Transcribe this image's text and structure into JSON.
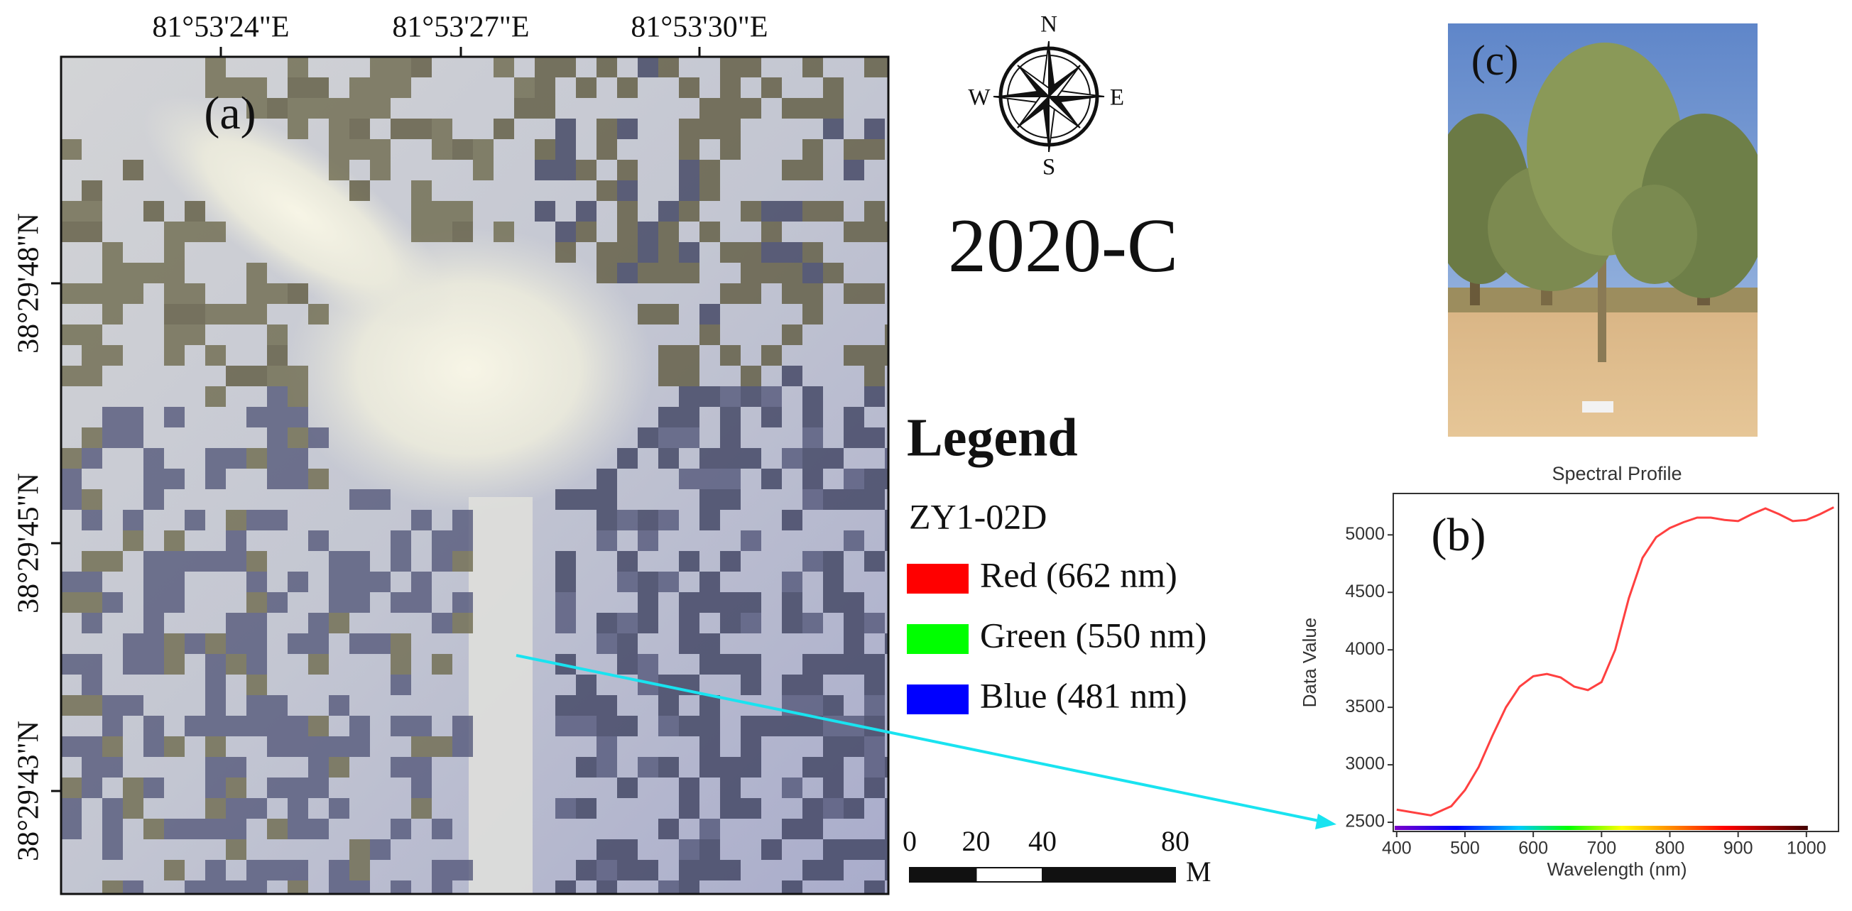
{
  "map": {
    "panel_label": "(a)",
    "x_labels": [
      "81°53'24\"E",
      "81°53'27\"E",
      "81°53'30\"E"
    ],
    "y_labels": [
      "38°29'48\"N",
      "38°29'45\"N",
      "38°29'43\"N"
    ],
    "north": "N",
    "south": "S",
    "east": "E",
    "west": "W",
    "title": "2020-C"
  },
  "legend": {
    "title": "Legend",
    "sensor": "ZY1-02D",
    "items": [
      {
        "label": "Red (662 nm)",
        "color": "#ff0000"
      },
      {
        "label": "Green (550 nm)",
        "color": "#00ff00"
      },
      {
        "label": "Blue (481 nm)",
        "color": "#0000ff"
      }
    ]
  },
  "scale_bar": {
    "ticks": [
      0,
      20,
      40,
      80
    ],
    "unit": "M"
  },
  "photo": {
    "panel_label": "(c)"
  },
  "chart_data": {
    "type": "line",
    "title": "Spectral Profile",
    "panel_label": "(b)",
    "x_label": "Wavelength (nm)",
    "y_label": "Data Value",
    "x": [
      400,
      420,
      450,
      480,
      500,
      520,
      540,
      560,
      580,
      600,
      620,
      640,
      660,
      680,
      700,
      720,
      740,
      760,
      780,
      800,
      820,
      840,
      860,
      880,
      900,
      920,
      940,
      960,
      980,
      1000,
      1020,
      1040
    ],
    "values": [
      2610,
      2590,
      2560,
      2640,
      2780,
      2980,
      3250,
      3500,
      3680,
      3770,
      3790,
      3760,
      3680,
      3650,
      3720,
      4000,
      4450,
      4800,
      4980,
      5060,
      5110,
      5150,
      5150,
      5130,
      5120,
      5180,
      5230,
      5180,
      5120,
      5130,
      5180,
      5240
    ],
    "color": "#ff4040",
    "xlim": [
      395,
      1047
    ],
    "ylim": [
      2420,
      5360
    ],
    "xticks": [
      400,
      500,
      600,
      700,
      800,
      900,
      1000
    ],
    "yticks": [
      2500,
      3000,
      3500,
      4000,
      4500,
      5000
    ]
  }
}
